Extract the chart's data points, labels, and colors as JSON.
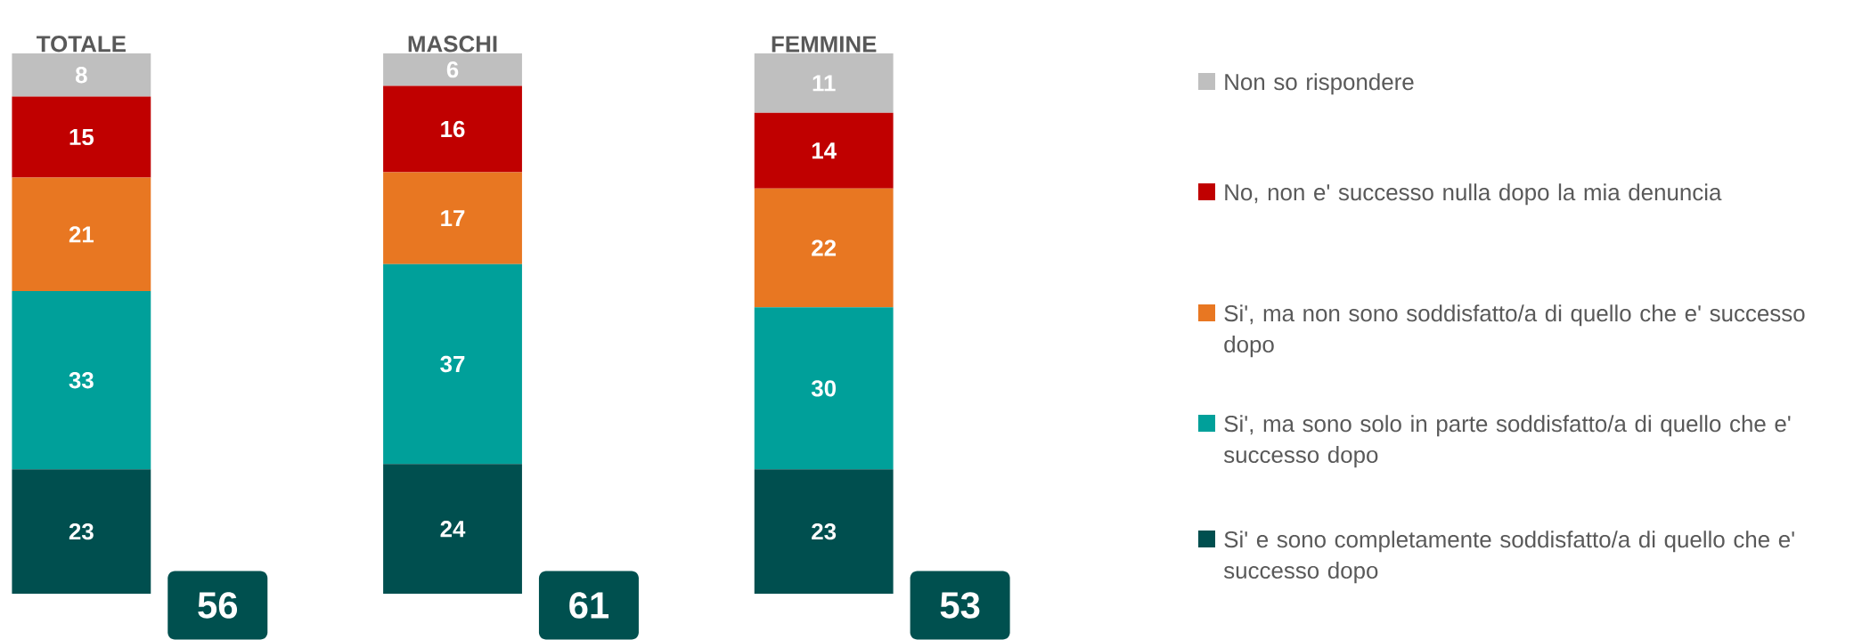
{
  "chart_data": {
    "type": "bar",
    "stacked": true,
    "data_labels": true,
    "legend": "right",
    "categories": [
      "TOTALE",
      "MASCHI",
      "FEMMINE"
    ],
    "series": [
      {
        "name": "Si' e sono completamente soddisfatto/a di quello che e' successo dopo",
        "color": "#004f4f",
        "values": [
          23,
          24,
          23
        ]
      },
      {
        "name": "Si', ma sono solo in parte soddisfatto/a di quello che e' successo dopo",
        "color": "#00a09a",
        "values": [
          33,
          37,
          30
        ]
      },
      {
        "name": "Si', ma non sono soddisfatto/a di quello che e' successo dopo",
        "color": "#e87722",
        "values": [
          21,
          17,
          22
        ]
      },
      {
        "name": "No, non e' successo nulla dopo la mia denuncia",
        "color": "#c00000",
        "values": [
          15,
          16,
          14
        ]
      },
      {
        "name": "Non so rispondere",
        "color": "#bfbfbf",
        "values": [
          8,
          6,
          11
        ]
      }
    ],
    "annotations": [
      "56",
      "61",
      "53"
    ]
  }
}
